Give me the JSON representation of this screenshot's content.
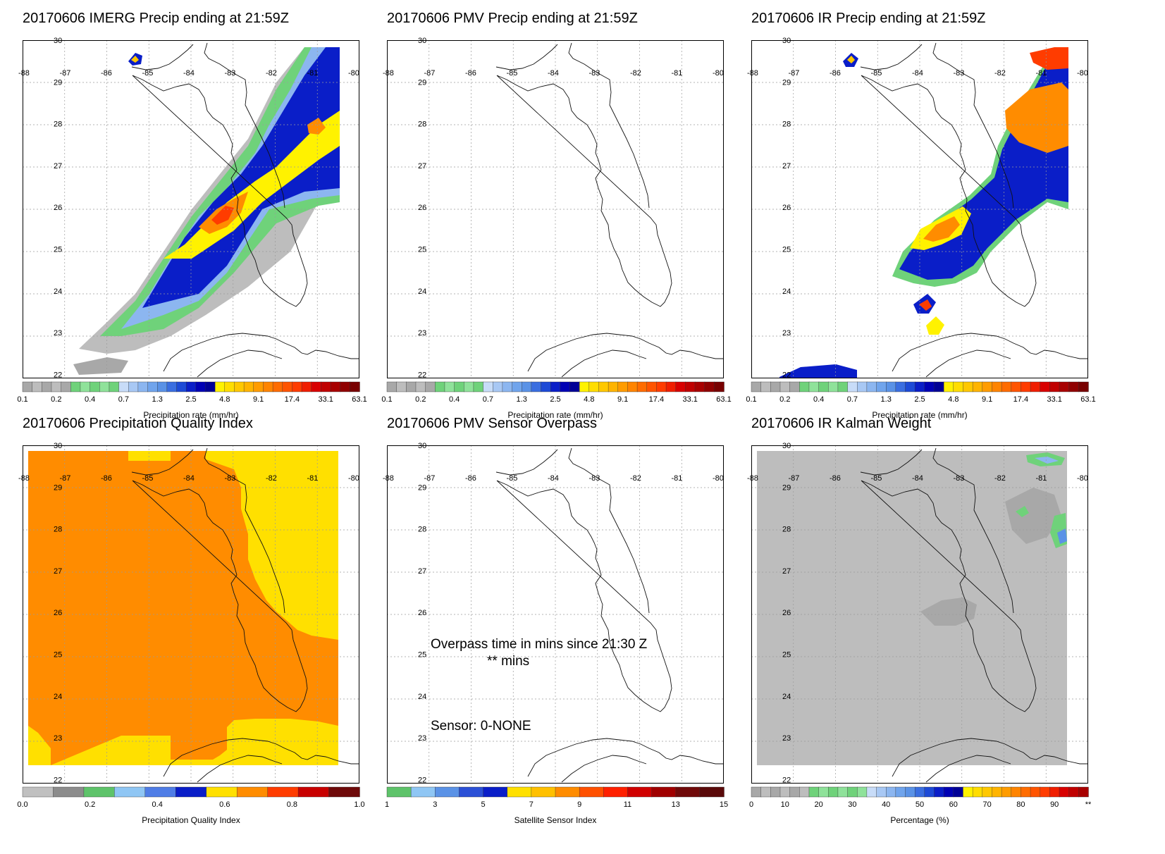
{
  "lat_labels": [
    "30",
    "29",
    "28",
    "27",
    "26",
    "25",
    "24",
    "23",
    "22"
  ],
  "lon_labels": [
    "-88",
    "-87",
    "-86",
    "-85",
    "-84",
    "-83",
    "-82",
    "-81",
    "-80"
  ],
  "colorbar_palette": {
    "precip": [
      "#a8a8a8",
      "#bdbdbd",
      "#a8a8a8",
      "#bdbdbd",
      "#a8a8a8",
      "#6fd27a",
      "#8fe29a",
      "#6fd27a",
      "#8fe29a",
      "#6fd27a",
      "#c8dcf8",
      "#a8c8f4",
      "#8cb6f0",
      "#70a4ec",
      "#5a92e6",
      "#3a6ee0",
      "#1d4ad6",
      "#0a1ec8",
      "#0000b4",
      "#000096",
      "#fff200",
      "#ffdd00",
      "#ffc800",
      "#ffb400",
      "#ff9c00",
      "#ff8400",
      "#ff6c00",
      "#ff5400",
      "#ff3c00",
      "#f01e00",
      "#d80000",
      "#c00000",
      "#a80000",
      "#900000",
      "#780000"
    ],
    "quality": [
      "#c0c0c0",
      "#8c8c8c",
      "#5ec36a",
      "#8fc6f4",
      "#4f7de6",
      "#0a1ec8",
      "#ffe000",
      "#ff8c00",
      "#ff3c00",
      "#c80000",
      "#6e0a0a"
    ],
    "sensor": [
      "#5ec36a",
      "#8fc6f4",
      "#5a92e6",
      "#2b50d6",
      "#0a1ec8",
      "#ffe000",
      "#ffc000",
      "#ff8c00",
      "#ff5000",
      "#ff2000",
      "#d00000",
      "#a00000",
      "#700a0a",
      "#5a0a0a"
    ],
    "kalman": [
      "#a8a8a8",
      "#bdbdbd",
      "#a8a8a8",
      "#bdbdbd",
      "#a8a8a8",
      "#bdbdbd",
      "#6fd27a",
      "#8fe29a",
      "#6fd27a",
      "#8fe29a",
      "#6fd27a",
      "#8fe29a",
      "#c8dcf8",
      "#a8c8f4",
      "#8cb6f0",
      "#70a4ec",
      "#5a92e6",
      "#3a6ee0",
      "#1d4ad6",
      "#0a1ec8",
      "#0000b4",
      "#000096",
      "#fff200",
      "#ffdd00",
      "#ffc800",
      "#ffb400",
      "#ff9c00",
      "#ff8400",
      "#ff6c00",
      "#ff5400",
      "#ff3c00",
      "#f01e00",
      "#d80000",
      "#c00000",
      "#a80000"
    ]
  },
  "panels": [
    {
      "title": "20170606 IMERG Precip ending at 21:59Z",
      "kind": "imerg",
      "palette": "precip",
      "colorbar_ticks": [
        "0.1",
        "0.2",
        "0.4",
        "0.7",
        "1.3",
        "2.5",
        "4.8",
        "9.1",
        "17.4",
        "33.1",
        "63.1"
      ],
      "colorbar_label": "Precipitation rate (mm/hr)"
    },
    {
      "title": "20170606 PMV Precip ending at 21:59Z",
      "kind": "blank",
      "palette": "precip",
      "colorbar_ticks": [
        "0.1",
        "0.2",
        "0.4",
        "0.7",
        "1.3",
        "2.5",
        "4.8",
        "9.1",
        "17.4",
        "33.1",
        "63.1"
      ],
      "colorbar_label": "Precipitation rate (mm/hr)"
    },
    {
      "title": "20170606 IR Precip ending at 21:59Z",
      "kind": "ir",
      "palette": "precip",
      "colorbar_ticks": [
        "0.1",
        "0.2",
        "0.4",
        "0.7",
        "1.3",
        "2.5",
        "4.8",
        "9.1",
        "17.4",
        "33.1",
        "63.1"
      ],
      "colorbar_label": "Precipitation rate (mm/hr)"
    },
    {
      "title": "20170606 Precipitation Quality Index",
      "kind": "quality",
      "palette": "quality",
      "colorbar_ticks": [
        "0.0",
        "0.2",
        "0.4",
        "0.6",
        "0.8",
        "1.0"
      ],
      "colorbar_label": "Precipitation Quality Index"
    },
    {
      "title": "20170606 PMV Sensor Overpass",
      "kind": "overpass",
      "palette": "sensor",
      "colorbar_ticks": [
        "1",
        "3",
        "5",
        "7",
        "9",
        "11",
        "13",
        "15"
      ],
      "colorbar_label": "Satellite Sensor Index",
      "overpass_line1": "Overpass time in mins since 21:30 Z",
      "overpass_line2": "** mins",
      "sensor_text": "Sensor:   0-NONE"
    },
    {
      "title": "20170606 IR Kalman Weight",
      "kind": "kalman",
      "palette": "kalman",
      "colorbar_ticks": [
        "0",
        "10",
        "20",
        "30",
        "40",
        "50",
        "60",
        "70",
        "80",
        "90",
        "**"
      ],
      "colorbar_label": "Percentage (%)"
    }
  ]
}
